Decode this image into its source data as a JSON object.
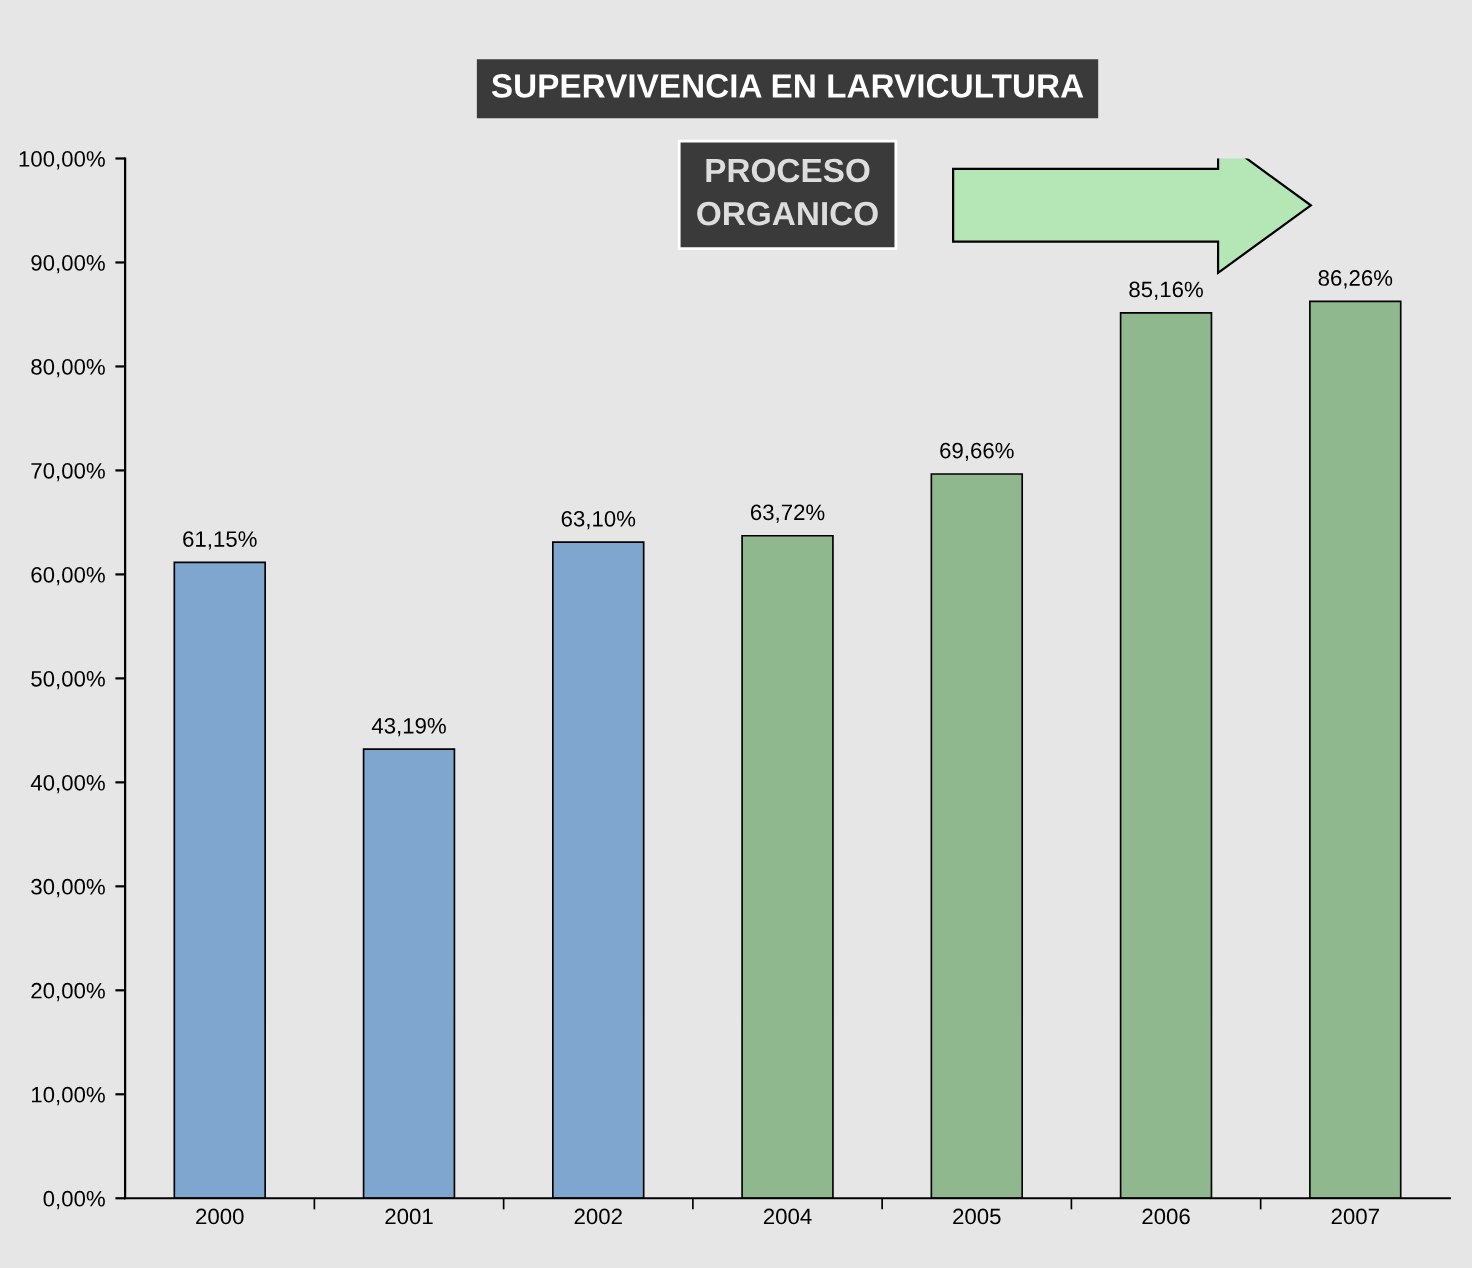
{
  "chart_data": {
    "type": "bar",
    "title": "SUPERVIVENCIA EN LARVICULTURA",
    "categories": [
      "2000",
      "2001",
      "2002",
      "2004",
      "2005",
      "2006",
      "2007"
    ],
    "values": [
      61.15,
      43.19,
      63.1,
      63.72,
      69.66,
      85.16,
      86.26
    ],
    "colors": [
      "#7fa6cf",
      "#7fa6cf",
      "#7fa6cf",
      "#8fb88f",
      "#8fb88f",
      "#8fb88f",
      "#8fb88f"
    ],
    "value_labels": [
      "61,15%",
      "43,19%",
      "63,10%",
      "63,72%",
      "69,66%",
      "85,16%",
      "86,26%"
    ],
    "annotations": [
      "PROCESO ORGANICO"
    ],
    "ylim": [
      0,
      100
    ],
    "yticks": [
      {
        "value": 0,
        "label": "0,00%"
      },
      {
        "value": 10,
        "label": "10,00%"
      },
      {
        "value": 20,
        "label": "20,00%"
      },
      {
        "value": 30,
        "label": "30,00%"
      },
      {
        "value": 40,
        "label": "40,00%"
      },
      {
        "value": 50,
        "label": "50,00%"
      },
      {
        "value": 60,
        "label": "60,00%"
      },
      {
        "value": 70,
        "label": "70,00%"
      },
      {
        "value": 80,
        "label": "80,00%"
      },
      {
        "value": 90,
        "label": "90,00%"
      },
      {
        "value": 100,
        "label": "100,00%"
      }
    ],
    "grid": false,
    "legend": false
  }
}
